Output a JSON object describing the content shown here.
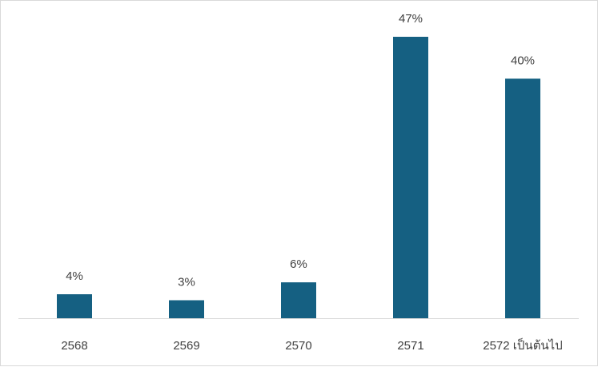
{
  "chart_data": {
    "type": "bar",
    "categories": [
      "2568",
      "2569",
      "2570",
      "2571",
      "2572 เป็นต้นไป"
    ],
    "values": [
      4,
      3,
      6,
      47,
      40
    ],
    "data_labels": [
      "4%",
      "3%",
      "6%",
      "47%",
      "40%"
    ],
    "title": "",
    "xlabel": "",
    "ylabel": "",
    "ylim": [
      0,
      47
    ],
    "grid": false,
    "legend": "none",
    "bar_color": "#156082",
    "axis_color": "#d9d9d9"
  }
}
